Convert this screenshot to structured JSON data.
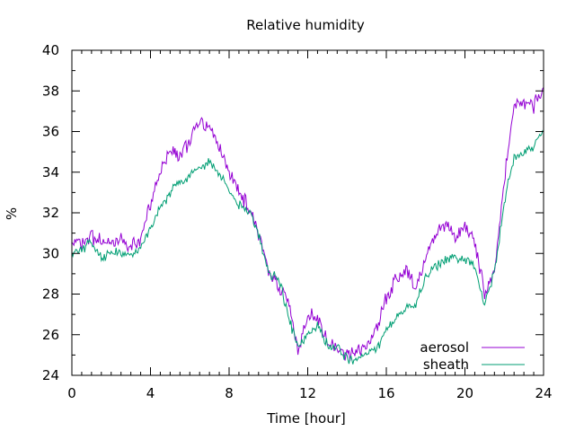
{
  "chart_data": {
    "type": "line",
    "title": "Relative humidity",
    "xlabel": "Time [hour]",
    "ylabel": "%",
    "xlim": [
      0,
      24
    ],
    "ylim": [
      24,
      40
    ],
    "x_ticks": [
      0,
      4,
      8,
      12,
      16,
      20,
      24
    ],
    "y_ticks": [
      24,
      26,
      28,
      30,
      32,
      34,
      36,
      38,
      40
    ],
    "grid": false,
    "legend_position": "bottom-right",
    "series": [
      {
        "name": "aerosol",
        "color": "#9400d3",
        "x": [
          0,
          0.5,
          1,
          1.5,
          2,
          2.5,
          3,
          3.5,
          4,
          4.5,
          5,
          5.5,
          6,
          6.5,
          7,
          7.5,
          8,
          8.5,
          9,
          9.5,
          10,
          10.5,
          11,
          11.5,
          12,
          12.5,
          13,
          13.5,
          14,
          14.5,
          15,
          15.5,
          16,
          16.5,
          17,
          17.5,
          18,
          18.5,
          19,
          19.5,
          20,
          20.5,
          21,
          21.5,
          22,
          22.5,
          23,
          23.5,
          24
        ],
        "y": [
          30.5,
          30.6,
          30.8,
          30.6,
          30.5,
          30.6,
          30.3,
          30.6,
          32.5,
          34,
          35,
          34.7,
          35.6,
          36.5,
          36.3,
          35.2,
          34,
          33,
          32.3,
          31,
          29,
          28.5,
          27.7,
          25.2,
          26.8,
          27,
          25.5,
          25.4,
          25,
          25.2,
          25.5,
          26.3,
          27.8,
          28.7,
          29.3,
          28.2,
          29.8,
          30.8,
          31.5,
          30.8,
          31.3,
          30.6,
          28,
          29,
          33.5,
          37.3,
          37.5,
          37.3,
          38.2
        ]
      },
      {
        "name": "sheath",
        "color": "#009e73",
        "x": [
          0,
          0.5,
          1,
          1.5,
          2,
          2.5,
          3,
          3.5,
          4,
          4.5,
          5,
          5.5,
          6,
          6.5,
          7,
          7.5,
          8,
          8.5,
          9,
          9.5,
          10,
          10.5,
          11,
          11.5,
          12,
          12.5,
          13,
          13.5,
          14,
          14.5,
          15,
          15.5,
          16,
          16.5,
          17,
          17.5,
          18,
          18.5,
          19,
          19.5,
          20,
          20.5,
          21,
          21.5,
          22,
          22.5,
          23,
          23.5,
          24
        ],
        "y": [
          30.1,
          30.2,
          30.5,
          29.8,
          30,
          30,
          29.9,
          30.2,
          31.2,
          32.2,
          33,
          33.5,
          33.8,
          34.2,
          34.5,
          34,
          33,
          32.4,
          32,
          31,
          29,
          28.8,
          27,
          25.3,
          26,
          26.5,
          25.5,
          25.3,
          24.8,
          24.8,
          25,
          25.3,
          26.2,
          26.8,
          27.3,
          27.5,
          28.8,
          29.3,
          29.8,
          29.8,
          29.8,
          29.3,
          27.5,
          29,
          32.5,
          34.8,
          35,
          35.3,
          36
        ]
      }
    ]
  }
}
